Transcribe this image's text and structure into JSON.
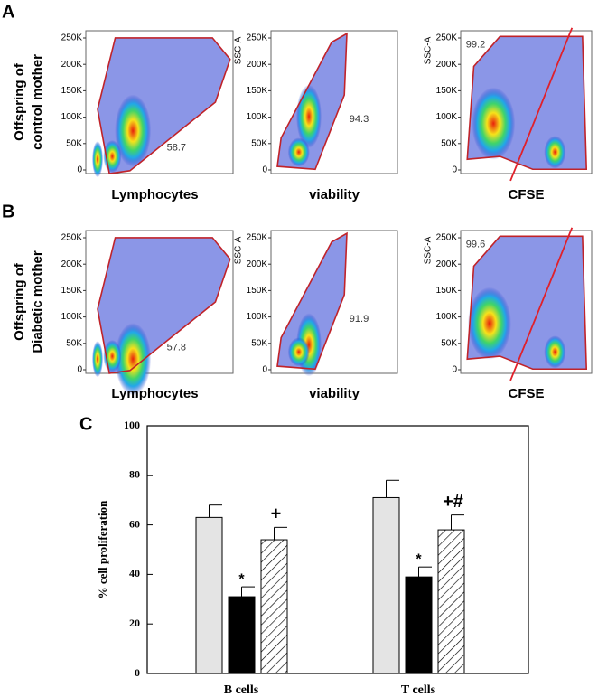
{
  "panels": [
    {
      "letter": "A",
      "row_label": [
        "Offspring of",
        "control mother"
      ],
      "plots": [
        {
          "x_label": "Lymphocytes",
          "gate": "58.7"
        },
        {
          "x_label": "viability",
          "y_label": "SSC-A",
          "gate": "94.3"
        },
        {
          "x_label": "CFSE",
          "y_label": "SSC-A",
          "gate": "99.2"
        }
      ]
    },
    {
      "letter": "B",
      "row_label": [
        "Offspring of",
        "Diabetic mother"
      ],
      "plots": [
        {
          "x_label": "Lymphocytes",
          "gate": "57.8"
        },
        {
          "x_label": "viability",
          "y_label": "SSC-A",
          "gate": "91.9"
        },
        {
          "x_label": "CFSE",
          "y_label": "SSC-A",
          "gate": "99.6"
        }
      ]
    }
  ],
  "flow_yticks": [
    "250K",
    "200K",
    "150K",
    "100K",
    "50K",
    "0"
  ],
  "chart_letter": "C",
  "chart_data": {
    "type": "bar",
    "ylabel": "% cell proliferation",
    "categories": [
      "B cells",
      "T cells"
    ],
    "series": [
      {
        "color": "#e4e4e4",
        "values": [
          63,
          71
        ],
        "errors": [
          5,
          7
        ]
      },
      {
        "color": "#000000",
        "values": [
          31,
          39
        ],
        "errors": [
          4,
          4
        ],
        "annotations": [
          "*",
          "*"
        ]
      },
      {
        "color": "#ffffff",
        "pattern": "hatch",
        "values": [
          54,
          58
        ],
        "errors": [
          5,
          6
        ],
        "annotations": [
          "+",
          "+#"
        ]
      }
    ],
    "ylim": [
      0,
      100
    ],
    "yticks": [
      0,
      20,
      40,
      60,
      80,
      100
    ]
  }
}
